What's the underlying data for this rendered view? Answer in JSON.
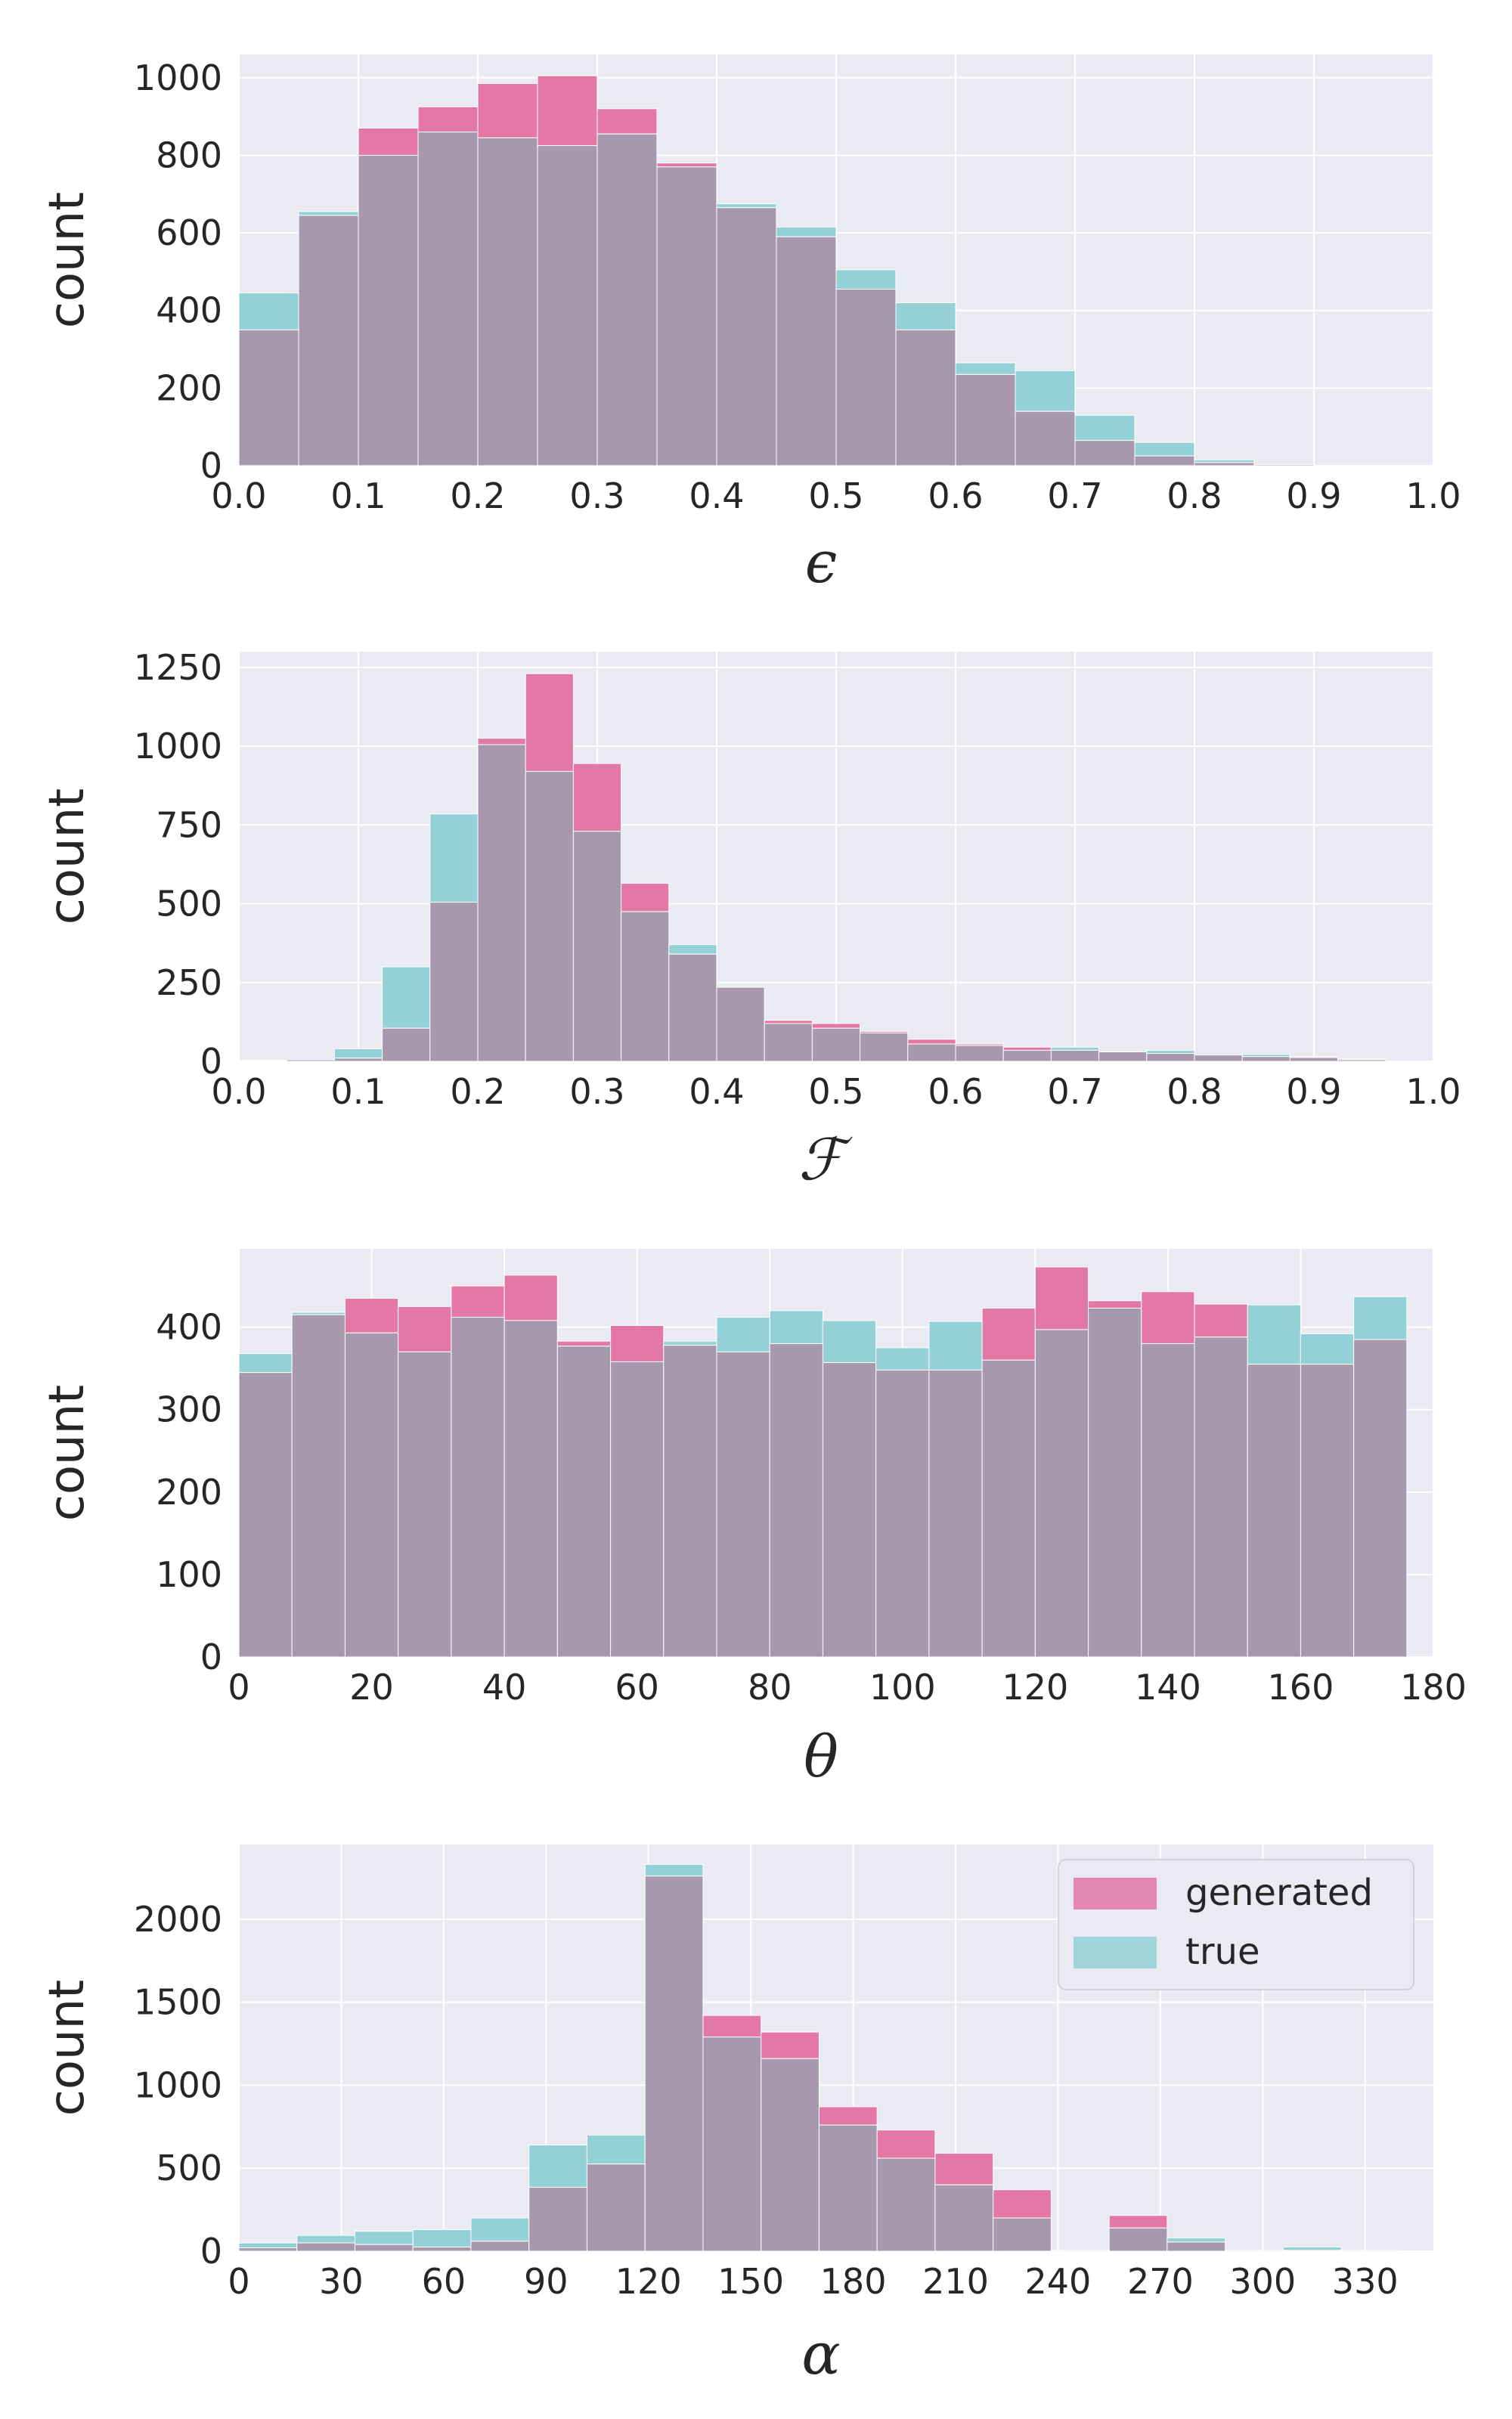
{
  "figure": {
    "legend": {
      "generated": "generated",
      "true": "true"
    }
  },
  "colors": {
    "generated": "#e377a6",
    "true": "#93d1d6",
    "overlap": "#a898ad",
    "axes_bg": "#eaeaf2",
    "grid": "#ffffff"
  },
  "chart_data": [
    {
      "type": "bar",
      "title": "",
      "xlabel": "ϵ",
      "ylabel": "count",
      "bin_start": 0.0,
      "bin_width": 0.05,
      "xlim": [
        0.0,
        1.0
      ],
      "ylim": [
        0,
        1060
      ],
      "xticks": [
        "0.0",
        "0.1",
        "0.2",
        "0.3",
        "0.4",
        "0.5",
        "0.6",
        "0.7",
        "0.8",
        "0.9",
        "1.0"
      ],
      "yticks": [
        "0",
        "200",
        "400",
        "600",
        "800",
        "1000"
      ],
      "series": [
        {
          "name": "generated",
          "values": [
            350,
            645,
            870,
            925,
            985,
            1005,
            920,
            780,
            665,
            590,
            455,
            350,
            235,
            140,
            65,
            25,
            8,
            3,
            1,
            0
          ]
        },
        {
          "name": "true",
          "values": [
            445,
            655,
            800,
            860,
            845,
            825,
            855,
            770,
            675,
            615,
            505,
            420,
            265,
            245,
            130,
            60,
            15,
            3,
            1,
            1
          ]
        }
      ]
    },
    {
      "type": "bar",
      "title": "",
      "xlabel": "ℱ",
      "ylabel": "count",
      "bin_start": 0.0,
      "bin_width": 0.04,
      "xlim": [
        0.0,
        1.0
      ],
      "ylim": [
        0,
        1300
      ],
      "xticks": [
        "0.0",
        "0.1",
        "0.2",
        "0.3",
        "0.4",
        "0.5",
        "0.6",
        "0.7",
        "0.8",
        "0.9",
        "1.0"
      ],
      "yticks": [
        "0",
        "250",
        "500",
        "750",
        "1000",
        "1250"
      ],
      "series": [
        {
          "name": "generated",
          "values": [
            2,
            5,
            10,
            105,
            505,
            1025,
            1230,
            945,
            565,
            340,
            235,
            130,
            120,
            95,
            70,
            55,
            45,
            35,
            30,
            25,
            20,
            15,
            12,
            5
          ]
        },
        {
          "name": "true",
          "values": [
            3,
            5,
            40,
            300,
            785,
            1005,
            920,
            730,
            475,
            370,
            235,
            120,
            105,
            90,
            55,
            50,
            35,
            45,
            30,
            35,
            20,
            22,
            15,
            8
          ]
        }
      ]
    },
    {
      "type": "bar",
      "title": "",
      "xlabel": "θ",
      "ylabel": "count",
      "bin_start": 0,
      "bin_width": 8,
      "xlim": [
        0,
        180
      ],
      "ylim": [
        0,
        495
      ],
      "xticks": [
        "0",
        "20",
        "40",
        "60",
        "80",
        "100",
        "120",
        "140",
        "160",
        "180"
      ],
      "yticks": [
        "0",
        "100",
        "200",
        "300",
        "400"
      ],
      "series": [
        {
          "name": "generated",
          "values": [
            345,
            415,
            435,
            425,
            450,
            463,
            383,
            402,
            378,
            370,
            380,
            357,
            348,
            348,
            423,
            473,
            432,
            443,
            428,
            355,
            355,
            385
          ]
        },
        {
          "name": "true",
          "values": [
            368,
            418,
            393,
            370,
            412,
            408,
            377,
            358,
            383,
            412,
            420,
            408,
            375,
            407,
            360,
            397,
            423,
            380,
            388,
            427,
            392,
            437
          ]
        }
      ]
    },
    {
      "type": "bar",
      "title": "",
      "xlabel": "α",
      "ylabel": "count",
      "bin_start": 0,
      "bin_width": 17,
      "xlim": [
        0,
        350
      ],
      "ylim": [
        0,
        2450
      ],
      "xticks": [
        "0",
        "30",
        "60",
        "90",
        "120",
        "150",
        "180",
        "210",
        "240",
        "270",
        "300",
        "330"
      ],
      "yticks": [
        "0",
        "500",
        "1000",
        "1500",
        "2000"
      ],
      "legend_position": "upper right",
      "series": [
        {
          "name": "generated",
          "values": [
            20,
            50,
            40,
            25,
            60,
            385,
            525,
            2260,
            1420,
            1320,
            870,
            730,
            590,
            370,
            5,
            215,
            55,
            5,
            5,
            5
          ]
        },
        {
          "name": "true",
          "values": [
            50,
            95,
            120,
            130,
            200,
            640,
            700,
            2330,
            1290,
            1160,
            760,
            560,
            400,
            200,
            5,
            140,
            80,
            5,
            25,
            5
          ]
        }
      ]
    }
  ]
}
